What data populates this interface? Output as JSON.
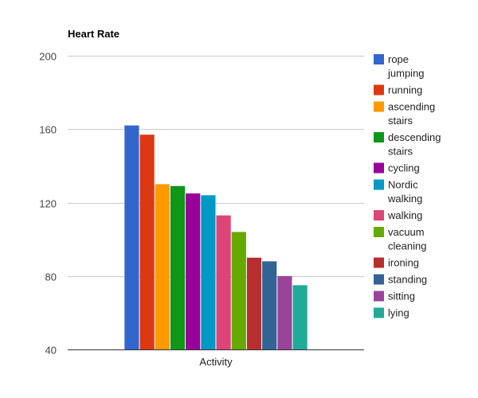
{
  "chart_data": {
    "type": "bar",
    "title": "Heart Rate",
    "xlabel": "Activity",
    "ylabel": "",
    "ylim": [
      40,
      200
    ],
    "yticks": [
      40,
      80,
      120,
      160,
      200
    ],
    "grid": true,
    "legend_position": "right",
    "categories": [
      "Activity"
    ],
    "series": [
      {
        "name": "rope jumping",
        "values": [
          162
        ],
        "color": "#3366cc"
      },
      {
        "name": "running",
        "values": [
          157
        ],
        "color": "#dc3912"
      },
      {
        "name": "ascending stairs",
        "values": [
          130
        ],
        "color": "#ff9900"
      },
      {
        "name": "descending stairs",
        "values": [
          129
        ],
        "color": "#109618"
      },
      {
        "name": "cycling",
        "values": [
          125
        ],
        "color": "#990099"
      },
      {
        "name": "Nordic walking",
        "values": [
          124
        ],
        "color": "#0099c6"
      },
      {
        "name": "walking",
        "values": [
          113
        ],
        "color": "#dd4477"
      },
      {
        "name": "vacuum cleaning",
        "values": [
          104
        ],
        "color": "#66aa00"
      },
      {
        "name": "ironing",
        "values": [
          90
        ],
        "color": "#b82e2e"
      },
      {
        "name": "standing",
        "values": [
          88
        ],
        "color": "#316395"
      },
      {
        "name": "sitting",
        "values": [
          80
        ],
        "color": "#994499"
      },
      {
        "name": "lying",
        "values": [
          75
        ],
        "color": "#22aa99"
      }
    ]
  }
}
